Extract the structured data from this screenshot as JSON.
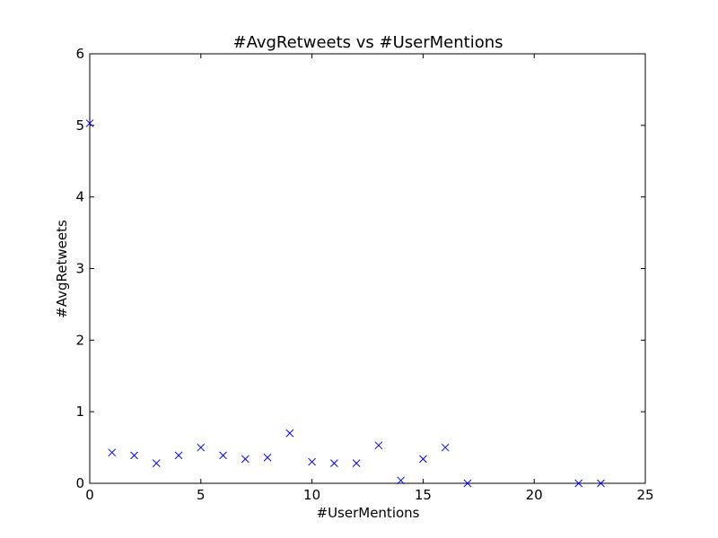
{
  "chart_data": {
    "type": "scatter",
    "title": "#AvgRetweets vs #UserMentions",
    "xlabel": "#UserMentions",
    "ylabel": "#AvgRetweets",
    "xlim": [
      0,
      25
    ],
    "ylim": [
      0,
      6
    ],
    "xticks": [
      "0",
      "5",
      "10",
      "15",
      "20",
      "25"
    ],
    "yticks": [
      "0",
      "1",
      "2",
      "3",
      "4",
      "5",
      "6"
    ],
    "grid": false,
    "marker": "x",
    "color": "#0000ff",
    "series": [
      {
        "x": [
          0,
          1,
          2,
          3,
          4,
          5,
          6,
          7,
          8,
          9,
          10,
          11,
          12,
          13,
          14,
          15,
          16,
          17,
          22,
          23
        ],
        "y": [
          5.03,
          0.43,
          0.39,
          0.28,
          0.39,
          0.5,
          0.39,
          0.34,
          0.36,
          0.7,
          0.3,
          0.28,
          0.28,
          0.53,
          0.04,
          0.34,
          0.5,
          0.0,
          0.0,
          0.0
        ]
      }
    ]
  }
}
